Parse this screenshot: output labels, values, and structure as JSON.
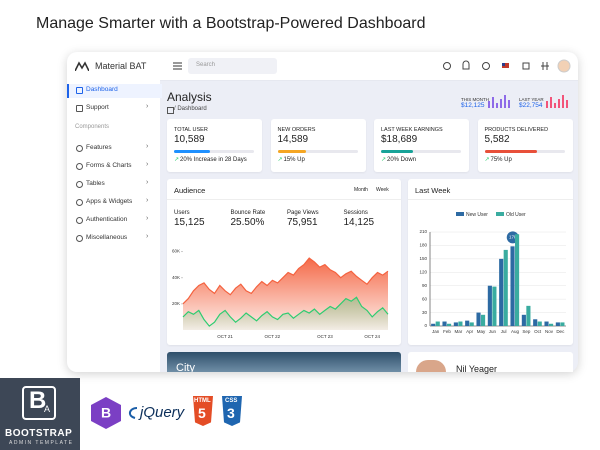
{
  "headline": "Manage Smarter with a Bootstrap-Powered Dashboard",
  "brand": "Material BAT",
  "search_placeholder": "Search",
  "sidebar": {
    "items": [
      "Dashboard",
      "Support"
    ],
    "section": "Components",
    "components": [
      "Features",
      "Forms & Charts",
      "Tables",
      "Apps & Widgets",
      "Authentication",
      "Miscellaneous"
    ]
  },
  "page_title": "Analysis",
  "breadcrumb": "/ Dashboard",
  "summary": [
    {
      "label": "THIS MONTH",
      "value": "$12,125"
    },
    {
      "label": "LAST YEAR",
      "value": "$22,754"
    }
  ],
  "stats": [
    {
      "label": "TOTAL USER",
      "value": "10,589",
      "note": "20% Increase in 28 Days",
      "color": "#1e90ff"
    },
    {
      "label": "NEW ORDERS",
      "value": "14,589",
      "note": "15% Up",
      "color": "#f5a623"
    },
    {
      "label": "LAST WEEK EARNINGS",
      "value": "$18,689",
      "note": "20% Down",
      "color": "#17a398"
    },
    {
      "label": "PRODUCTS DELIVERED",
      "value": "5,582",
      "note": "75% Up",
      "color": "#e8503a"
    }
  ],
  "audience": {
    "title": "Audience",
    "tabs": [
      "Month",
      "Week"
    ],
    "metrics": [
      {
        "label": "Users",
        "value": "15,125"
      },
      {
        "label": "Bounce Rate",
        "value": "25.50%"
      },
      {
        "label": "Page Views",
        "value": "75,951"
      },
      {
        "label": "Sessions",
        "value": "14,125"
      }
    ]
  },
  "last_week_title": "Last Week",
  "chart_data": [
    {
      "type": "area",
      "categories": [
        null,
        null,
        null,
        null,
        null,
        null,
        null,
        null,
        "OCT 21",
        null,
        null,
        null,
        null,
        null,
        null,
        null,
        null,
        "OCT 22",
        null,
        null,
        null,
        null,
        null,
        null,
        null,
        null,
        null,
        "OCT 23",
        null,
        null,
        null,
        null,
        null,
        null,
        null,
        null,
        "OCT 24",
        null,
        null,
        null
      ],
      "series": [
        {
          "color": "#f4623f",
          "values": [
            20000,
            24000,
            30000,
            34000,
            36000,
            31000,
            28000,
            34000,
            30000,
            27000,
            32000,
            35000,
            30000,
            28000,
            33000,
            37000,
            34000,
            38000,
            36000,
            40000,
            44000,
            42000,
            47000,
            50000,
            55000,
            52000,
            48000,
            50000,
            46000,
            44000,
            40000,
            43000,
            45000,
            41000,
            38000,
            35000,
            40000,
            44000,
            42000,
            45000
          ]
        },
        {
          "color": "#2ecc71",
          "values": [
            10000,
            14000,
            12000,
            15000,
            8000,
            3000,
            6000,
            12000,
            15000,
            10000,
            6000,
            9000,
            13000,
            10000,
            7000,
            11000,
            14000,
            10000,
            8000,
            12000,
            13000,
            9000,
            12000,
            15000,
            13000,
            16000,
            12000,
            15000,
            18000,
            16000,
            20000,
            24000,
            22000,
            25000,
            18000,
            15000,
            10000,
            14000,
            17000,
            12000
          ]
        }
      ],
      "ylim": [
        0,
        65000
      ],
      "yticks": [
        {
          "value": 20000,
          "label": "20K"
        },
        {
          "value": 40000,
          "label": "40K"
        },
        {
          "value": 60000,
          "label": "60K"
        }
      ]
    },
    {
      "type": "bar",
      "categories": [
        "Jan",
        "Feb",
        "Mar",
        "Apr",
        "May",
        "Jun",
        "Jul",
        "Aug",
        "Sep",
        "Oct",
        "Nov",
        "Dec"
      ],
      "series": [
        {
          "name": "New User",
          "color": "#2d6aa3",
          "values": [
            5,
            10,
            8,
            12,
            30,
            90,
            150,
            178,
            25,
            15,
            10,
            8
          ],
          "value_labels": [
            null,
            null,
            null,
            null,
            null,
            null,
            null,
            "178",
            null,
            null,
            null,
            null
          ]
        },
        {
          "name": "Old User",
          "color": "#3aaca0",
          "values": [
            10,
            5,
            10,
            8,
            25,
            88,
            170,
            205,
            45,
            10,
            5,
            8
          ]
        }
      ],
      "ylim": [
        0,
        210
      ],
      "yticks": [
        0,
        30,
        60,
        90,
        120,
        150,
        180,
        210
      ],
      "grid": true
    }
  ],
  "bottom": {
    "card_text": "City",
    "profile_name": "Nil Yeager"
  },
  "logos": {
    "badge_letter": "B",
    "badge_sub": "A",
    "bootstrap": "BOOTSTRAP",
    "admin": "ADMIN TEMPLATE",
    "jquery": "jQuery",
    "html": "HTML",
    "html_version": "5",
    "css": "CSS",
    "css_version": "3"
  }
}
